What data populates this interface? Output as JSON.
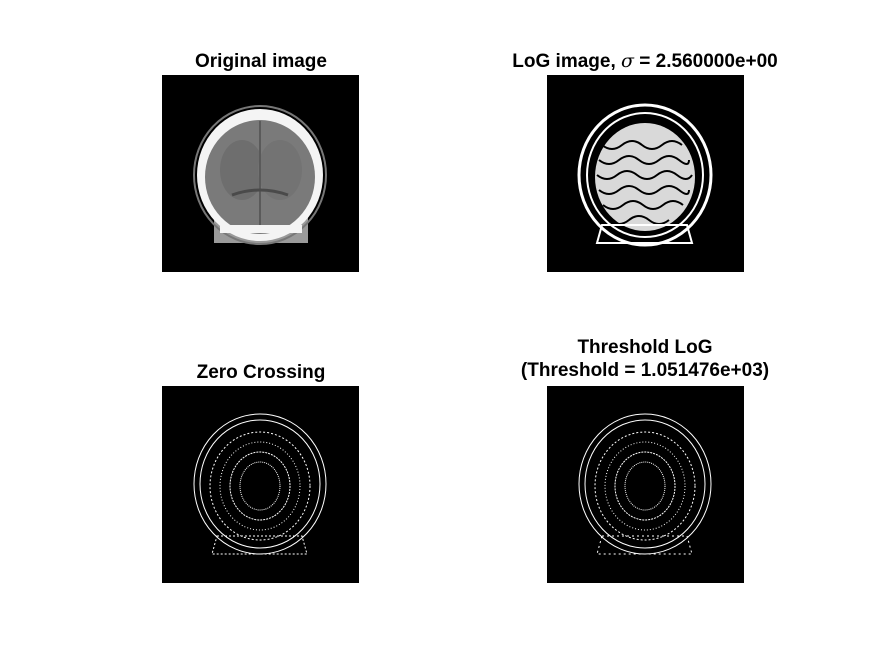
{
  "panels": {
    "original": {
      "title": "Original image"
    },
    "log": {
      "title_prefix": "LoG image, ",
      "title_symbol": "σ",
      "title_suffix": " = 2.560000e+00"
    },
    "zero": {
      "title": "Zero Crossing"
    },
    "threshold": {
      "title_line1": "Threshold LoG",
      "title_line2": "(Threshold = 1.051476e+03)"
    }
  },
  "colors": {
    "background": "#000000",
    "edge": "#ffffff",
    "skull": "#f4f4f4",
    "brain": "#7a7a7a"
  }
}
